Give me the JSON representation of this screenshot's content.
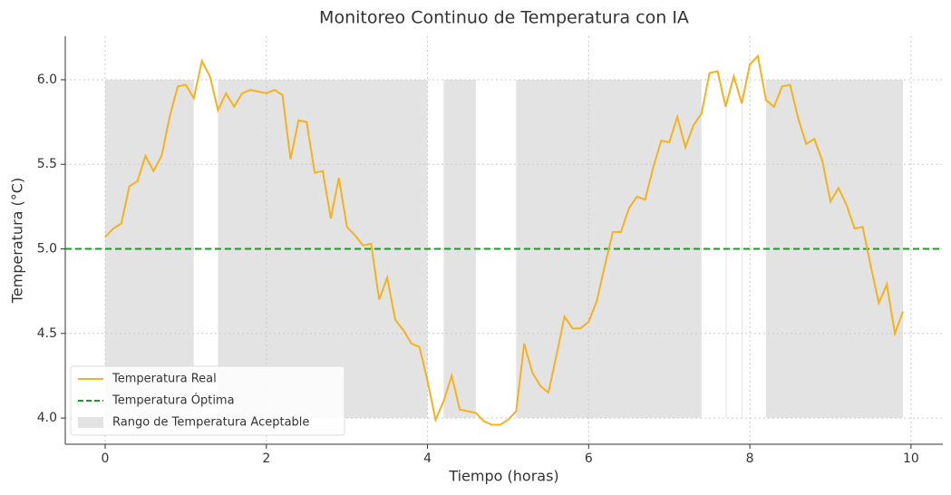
{
  "chart_data": {
    "type": "line",
    "title": "Monitoreo Continuo de Temperatura con IA",
    "xlabel": "Tiempo (horas)",
    "ylabel": "Temperatura (°C)",
    "x": [
      0,
      0.1,
      0.2,
      0.3,
      0.4,
      0.5,
      0.6,
      0.7,
      0.8,
      0.9,
      1,
      1.1,
      1.2,
      1.3,
      1.4,
      1.5,
      1.6,
      1.7,
      1.8,
      1.9,
      2,
      2.1,
      2.2,
      2.3,
      2.4,
      2.5,
      2.6,
      2.7,
      2.8,
      2.9,
      3,
      3.1,
      3.2,
      3.3,
      3.4,
      3.5,
      3.6,
      3.7,
      3.8,
      3.9,
      4,
      4.1,
      4.2,
      4.3,
      4.4,
      4.5,
      4.6,
      4.7,
      4.8,
      4.9,
      5,
      5.1,
      5.2,
      5.3,
      5.4,
      5.5,
      5.6,
      5.7,
      5.8,
      5.9,
      6,
      6.1,
      6.2,
      6.3,
      6.4,
      6.5,
      6.6,
      6.7,
      6.8,
      6.9,
      7,
      7.1,
      7.2,
      7.3,
      7.4,
      7.5,
      7.6,
      7.7,
      7.8,
      7.9,
      8,
      8.1,
      8.2,
      8.3,
      8.4,
      8.5,
      8.6,
      8.7,
      8.8,
      8.9,
      9,
      9.1,
      9.2,
      9.3,
      9.4,
      9.5,
      9.6,
      9.7,
      9.8,
      9.9
    ],
    "series": [
      {
        "name": "Temperatura Real",
        "color": "#f5b21e",
        "values": [
          5.07,
          5.12,
          5.15,
          5.37,
          5.4,
          5.55,
          5.46,
          5.55,
          5.78,
          5.96,
          5.97,
          5.89,
          6.11,
          6.02,
          5.82,
          5.92,
          5.84,
          5.92,
          5.94,
          5.93,
          5.92,
          5.94,
          5.91,
          5.53,
          5.76,
          5.75,
          5.45,
          5.46,
          5.18,
          5.42,
          5.13,
          5.08,
          5.02,
          5.03,
          4.7,
          4.83,
          4.58,
          4.52,
          4.44,
          4.42,
          4.22,
          3.99,
          4.1,
          4.25,
          4.05,
          4.04,
          4.03,
          3.98,
          3.96,
          3.96,
          3.99,
          4.04,
          4.44,
          4.27,
          4.19,
          4.15,
          4.37,
          4.6,
          4.53,
          4.53,
          4.57,
          4.69,
          4.9,
          5.1,
          5.1,
          5.24,
          5.31,
          5.29,
          5.48,
          5.64,
          5.63,
          5.78,
          5.6,
          5.73,
          5.8,
          6.04,
          6.05,
          5.84,
          6.02,
          5.86,
          6.09,
          6.14,
          5.88,
          5.84,
          5.96,
          5.97,
          5.77,
          5.62,
          5.65,
          5.52,
          5.28,
          5.36,
          5.26,
          5.12,
          5.13,
          4.9,
          4.68,
          4.79,
          4.5,
          4.63
        ]
      }
    ],
    "optimal": {
      "name": "Temperatura Óptima",
      "value": 5.0,
      "color": "#1f9a2a"
    },
    "band": {
      "name": "Rango de Temperatura Aceptable",
      "range": [
        4.0,
        6.0
      ],
      "color": "#e3e3e3"
    },
    "xlim": [
      -0.495,
      10.395
    ],
    "xticks": [
      0,
      2,
      4,
      6,
      8,
      10
    ],
    "ylim": [
      3.845,
      6.257
    ],
    "yticks": [
      {
        "value": 4,
        "label": "4.0"
      },
      4.5,
      {
        "value": 5,
        "label": "5.0"
      },
      5.5,
      {
        "value": 6,
        "label": "6.0"
      }
    ],
    "grid": true,
    "legend": "lower left"
  }
}
